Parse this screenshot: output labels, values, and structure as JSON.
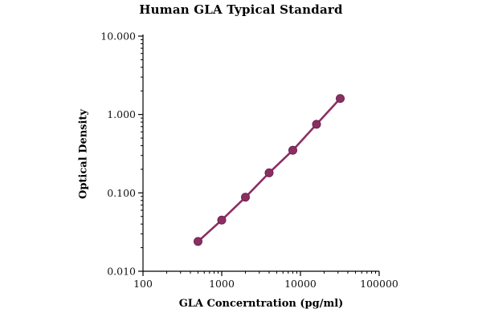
{
  "chart_data": {
    "type": "line",
    "title": "Human GLA Typical Standard",
    "xlabel": "GLA Concerntration (pg/ml)",
    "ylabel": "Optical Density",
    "xscale": "log",
    "yscale": "log",
    "xlim": [
      100,
      100000
    ],
    "ylim": [
      0.01,
      10
    ],
    "grid": false,
    "legend": false,
    "series": [
      {
        "name": "Typical Standard",
        "x": [
          500,
          1000,
          2000,
          4000,
          8000,
          16000,
          32000
        ],
        "y": [
          0.024,
          0.045,
          0.088,
          0.18,
          0.35,
          0.75,
          1.6
        ]
      }
    ],
    "x_ticks": {
      "values": [
        100,
        1000,
        10000,
        100000
      ],
      "labels": [
        "100",
        "1000",
        "10000",
        "100000"
      ]
    },
    "y_ticks": {
      "values": [
        10,
        1,
        0.1,
        0.01
      ],
      "labels": [
        "10.000",
        "1.000",
        "0.100",
        "0.010"
      ]
    },
    "line_color": "#8b2f63",
    "marker_edge_color": "#6d2450",
    "axis_color": "#000000"
  }
}
